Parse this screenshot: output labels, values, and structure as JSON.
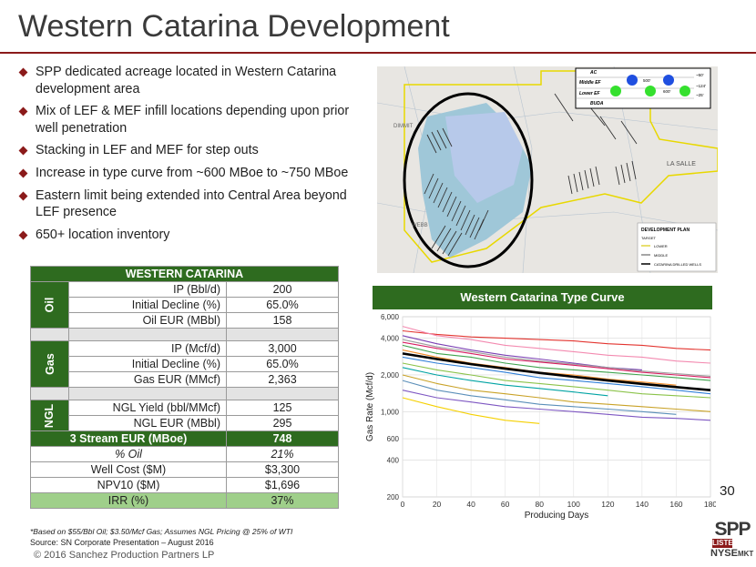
{
  "title": "Western Catarina Development",
  "bullets": [
    "SPP dedicated acreage located in Western Catarina development area",
    "Mix of LEF & MEF infill locations depending upon prior well penetration",
    "Stacking in LEF and MEF for step outs",
    "Increase in type curve from ~600 MBoe to ~750 MBoe",
    "Eastern limit being extended into Central Area beyond LEF presence",
    "650+ location inventory"
  ],
  "map": {
    "labels": [
      "DIMMIT",
      "WEBB",
      "LA SALLE"
    ],
    "strat": {
      "layers": [
        "AC",
        "Middle EF",
        "Lower EF",
        "BUDA"
      ],
      "spacings": [
        "~50'",
        "~124'",
        "~25'"
      ],
      "widths": [
        "500'",
        "600'"
      ]
    },
    "legend": {
      "title": "DEVELOPMENT PLAN",
      "target": "TARGET",
      "items": [
        "LOWER",
        "MIDDLE",
        "CATARINA DRILLED WELLS"
      ]
    }
  },
  "table": {
    "header": "WESTERN CATARINA",
    "oil": {
      "group": "Oil",
      "rows": [
        {
          "label": "IP (Bbl/d)",
          "value": "200"
        },
        {
          "label": "Initial Decline (%)",
          "value": "65.0%"
        },
        {
          "label": "Oil EUR (MBbl)",
          "value": "158"
        }
      ]
    },
    "gas": {
      "group": "Gas",
      "rows": [
        {
          "label": "IP (Mcf/d)",
          "value": "3,000"
        },
        {
          "label": "Initial Decline (%)",
          "value": "65.0%"
        },
        {
          "label": "Gas EUR (MMcf)",
          "value": "2,363"
        }
      ]
    },
    "ngl": {
      "group": "NGL",
      "rows": [
        {
          "label": "NGL Yield (bbl/MMcf)",
          "value": "125"
        },
        {
          "label": "NGL EUR (MBbl)",
          "value": "295"
        }
      ]
    },
    "summary": [
      {
        "label": "3 Stream EUR (MBoe)",
        "value": "748",
        "style": "green"
      },
      {
        "label": "% Oil",
        "value": "21%",
        "style": "italic"
      },
      {
        "label": "Well Cost ($M)",
        "value": "$3,300",
        "style": "plain"
      },
      {
        "label": "NPV10 ($M)",
        "value": "$1,696",
        "style": "plain"
      },
      {
        "label": "IRR (%)",
        "value": "37%",
        "style": "lgreen"
      }
    ]
  },
  "chart_data": {
    "type": "line",
    "title": "Western Catarina Type Curve",
    "xlabel": "Producing Days",
    "ylabel": "Gas Rate (Mcf/d)",
    "xlim": [
      0,
      180
    ],
    "ylim": [
      200,
      6000
    ],
    "yscale": "log",
    "xticks": [
      0,
      20,
      40,
      60,
      80,
      100,
      120,
      140,
      160,
      180
    ],
    "yticks": [
      200,
      400,
      600,
      1000,
      2000,
      4000,
      6000
    ],
    "yticklabels": [
      "200",
      "400",
      "600",
      "1,000",
      "2,000",
      "4,000",
      "6,000"
    ],
    "grid": true,
    "series": [
      {
        "role": "type-curve",
        "color": "#000000",
        "x": [
          0,
          20,
          40,
          60,
          80,
          100,
          120,
          140,
          160,
          180
        ],
        "y": [
          3000,
          2700,
          2450,
          2250,
          2080,
          1930,
          1800,
          1690,
          1590,
          1500
        ]
      },
      {
        "role": "well",
        "color": "#e3342f",
        "x": [
          0,
          20,
          40,
          60,
          80,
          100,
          120,
          140,
          160,
          180
        ],
        "y": [
          4600,
          4300,
          4100,
          4000,
          3900,
          3800,
          3600,
          3500,
          3300,
          3200
        ]
      },
      {
        "role": "well",
        "color": "#f38ab0",
        "x": [
          0,
          20,
          40,
          60,
          80,
          100,
          120,
          140,
          160,
          180
        ],
        "y": [
          5000,
          4200,
          3900,
          3500,
          3300,
          3100,
          2900,
          2800,
          2600,
          2500
        ]
      },
      {
        "role": "well",
        "color": "#7a3fb3",
        "x": [
          0,
          20,
          40,
          60,
          80,
          100,
          120,
          140
        ],
        "y": [
          4200,
          3600,
          3200,
          2900,
          2700,
          2500,
          2300,
          2200
        ]
      },
      {
        "role": "well",
        "color": "#3fa34d",
        "x": [
          0,
          20,
          40,
          60,
          80,
          100,
          120,
          140,
          160,
          180
        ],
        "y": [
          3500,
          3000,
          2800,
          2500,
          2300,
          2200,
          2100,
          2000,
          1900,
          1800
        ]
      },
      {
        "role": "well",
        "color": "#f28c28",
        "x": [
          0,
          20,
          40,
          60,
          80,
          100,
          120,
          140,
          160
        ],
        "y": [
          3200,
          2800,
          2500,
          2300,
          2100,
          2000,
          1850,
          1750,
          1650
        ]
      },
      {
        "role": "well",
        "color": "#2f7fd8",
        "x": [
          0,
          20,
          40,
          60,
          80,
          100,
          120,
          140,
          160,
          180
        ],
        "y": [
          2800,
          2500,
          2300,
          2100,
          1900,
          1800,
          1700,
          1600,
          1500,
          1400
        ]
      },
      {
        "role": "well",
        "color": "#8bc34a",
        "x": [
          0,
          20,
          40,
          60,
          80,
          100,
          120,
          140,
          160,
          180
        ],
        "y": [
          2500,
          2200,
          2000,
          1800,
          1700,
          1600,
          1500,
          1400,
          1350,
          1300
        ]
      },
      {
        "role": "well",
        "color": "#00a3a3",
        "x": [
          0,
          20,
          40,
          60,
          80,
          100,
          120
        ],
        "y": [
          2300,
          2000,
          1800,
          1650,
          1550,
          1450,
          1350
        ]
      },
      {
        "role": "well",
        "color": "#c9a227",
        "x": [
          0,
          20,
          40,
          60,
          80,
          100,
          120,
          140,
          160,
          180
        ],
        "y": [
          2000,
          1700,
          1500,
          1400,
          1300,
          1200,
          1150,
          1100,
          1050,
          1000
        ]
      },
      {
        "role": "well",
        "color": "#5b8fb9",
        "x": [
          0,
          20,
          40,
          60,
          80,
          100,
          120,
          140,
          160
        ],
        "y": [
          1800,
          1500,
          1350,
          1250,
          1150,
          1100,
          1050,
          1000,
          950
        ]
      },
      {
        "role": "well",
        "color": "#7e57c2",
        "x": [
          0,
          20,
          40,
          60,
          80,
          100,
          120,
          140,
          160,
          180
        ],
        "y": [
          1500,
          1300,
          1200,
          1100,
          1050,
          1000,
          950,
          900,
          880,
          850
        ]
      },
      {
        "role": "well",
        "color": "#f5d000",
        "x": [
          0,
          20,
          40,
          60,
          80
        ],
        "y": [
          1300,
          1100,
          950,
          850,
          800
        ]
      },
      {
        "role": "well",
        "color": "#9e9e9e",
        "x": [
          0,
          20,
          40,
          60,
          80,
          100,
          120,
          140,
          160,
          180
        ],
        "y": [
          3900,
          3400,
          3100,
          2800,
          2600,
          2450,
          2300,
          2150,
          2050,
          1950
        ]
      },
      {
        "role": "well",
        "color": "#d81b60",
        "x": [
          0,
          20,
          40,
          60,
          80,
          100,
          120,
          140,
          160,
          180
        ],
        "y": [
          3700,
          3300,
          3000,
          2700,
          2550,
          2400,
          2250,
          2100,
          2000,
          1900
        ]
      }
    ]
  },
  "page_number": "30",
  "footnote": "*Based on $55/Bbl Oil; $3.50/Mcf Gas;  Assumes NGL Pricing @ 25% of WTI",
  "source": "Source: SN Corporate Presentation – August 2016",
  "copyright": "© 2016 Sanchez Production Partners LP",
  "logo": {
    "spp": "SPP",
    "listed": "LISTED",
    "nyse": "NYSE",
    "mkt": "MKT"
  }
}
